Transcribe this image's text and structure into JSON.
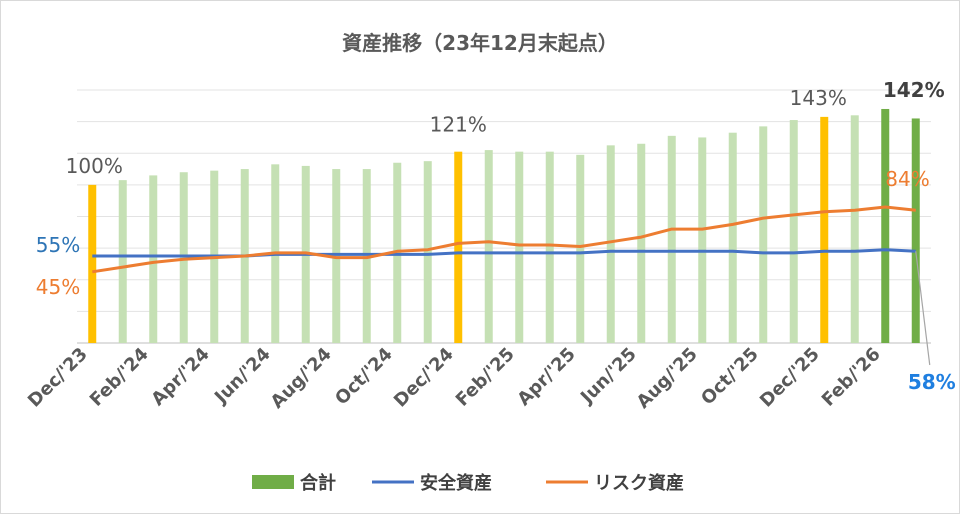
{
  "chart_data": {
    "type": "bar",
    "title": "資産推移（23年12月末起点）",
    "categories": [
      "Dec/'23",
      "Jan/'24",
      "Feb/'24",
      "Mar/'24",
      "Apr/'24",
      "May/'24",
      "Jun/'24",
      "Jul/'24",
      "Aug/'24",
      "Sep/'24",
      "Oct/'24",
      "Nov/'24",
      "Dec/'24",
      "Jan/'25",
      "Feb/'25",
      "Mar/'25",
      "Apr/'25",
      "May/'25",
      "Jun/'25",
      "Jul/'25",
      "Aug/'25",
      "Sep/'25",
      "Oct/'25",
      "Nov/'25",
      "Dec/'25",
      "Jan/'26",
      "Feb/'26",
      "Mar/'26"
    ],
    "x_tick_labels": [
      "Dec/'23",
      "Feb/'24",
      "Apr/'24",
      "Jun/'24",
      "Aug/'24",
      "Oct/'24",
      "Dec/'24",
      "Feb/'25",
      "Apr/'25",
      "Jun/'25",
      "Aug/'25",
      "Oct/'25",
      "Dec/'25",
      "Feb/'26"
    ],
    "series": [
      {
        "name": "合計",
        "type": "bar",
        "color": "#c5e0b4",
        "values": [
          100,
          103,
          106,
          108,
          109,
          110,
          113,
          112,
          110,
          110,
          114,
          115,
          121,
          122,
          121,
          121,
          119,
          125,
          126,
          131,
          130,
          133,
          137,
          141,
          143,
          144,
          148,
          142
        ]
      },
      {
        "name": "安全資産",
        "type": "line",
        "color": "#4472c4",
        "values": [
          55,
          55,
          55,
          55,
          55,
          55,
          56,
          56,
          56,
          56,
          56,
          56,
          57,
          57,
          57,
          57,
          57,
          58,
          58,
          58,
          58,
          58,
          57,
          57,
          58,
          58,
          59,
          58
        ]
      },
      {
        "name": "リスク資産",
        "type": "line",
        "color": "#ed7d31",
        "values": [
          45,
          48,
          51,
          53,
          54,
          55,
          57,
          57,
          54,
          54,
          58,
          59,
          63,
          64,
          62,
          62,
          61,
          64,
          67,
          72,
          72,
          75,
          79,
          81,
          83,
          84,
          86,
          84
        ]
      }
    ],
    "highlight_bars": [
      {
        "index": 0,
        "color": "#ffc000"
      },
      {
        "index": 12,
        "color": "#ffc000"
      },
      {
        "index": 24,
        "color": "#ffc000"
      },
      {
        "index": 26,
        "color": "#70ad47"
      },
      {
        "index": 27,
        "color": "#70ad47"
      }
    ],
    "annotations": [
      {
        "text": "100%",
        "color": "#595959",
        "bold": false
      },
      {
        "text": "121%",
        "color": "#595959",
        "bold": false
      },
      {
        "text": "143%",
        "color": "#595959",
        "bold": false
      },
      {
        "text": "142%",
        "color": "#404040",
        "bold": true
      },
      {
        "text": "55%",
        "color": "#2e75b6",
        "bold": false
      },
      {
        "text": "45%",
        "color": "#ed7d31",
        "bold": false
      },
      {
        "text": "84%",
        "color": "#ed7d31",
        "bold": false
      },
      {
        "text": "58%",
        "color": "#1f7fe0",
        "bold": true
      }
    ],
    "ylim": [
      0,
      160
    ],
    "y_axis_labels": false,
    "grid": true,
    "legend": "bottom",
    "legend_entries": [
      "合計",
      "安全資産",
      "リスク資産"
    ]
  }
}
